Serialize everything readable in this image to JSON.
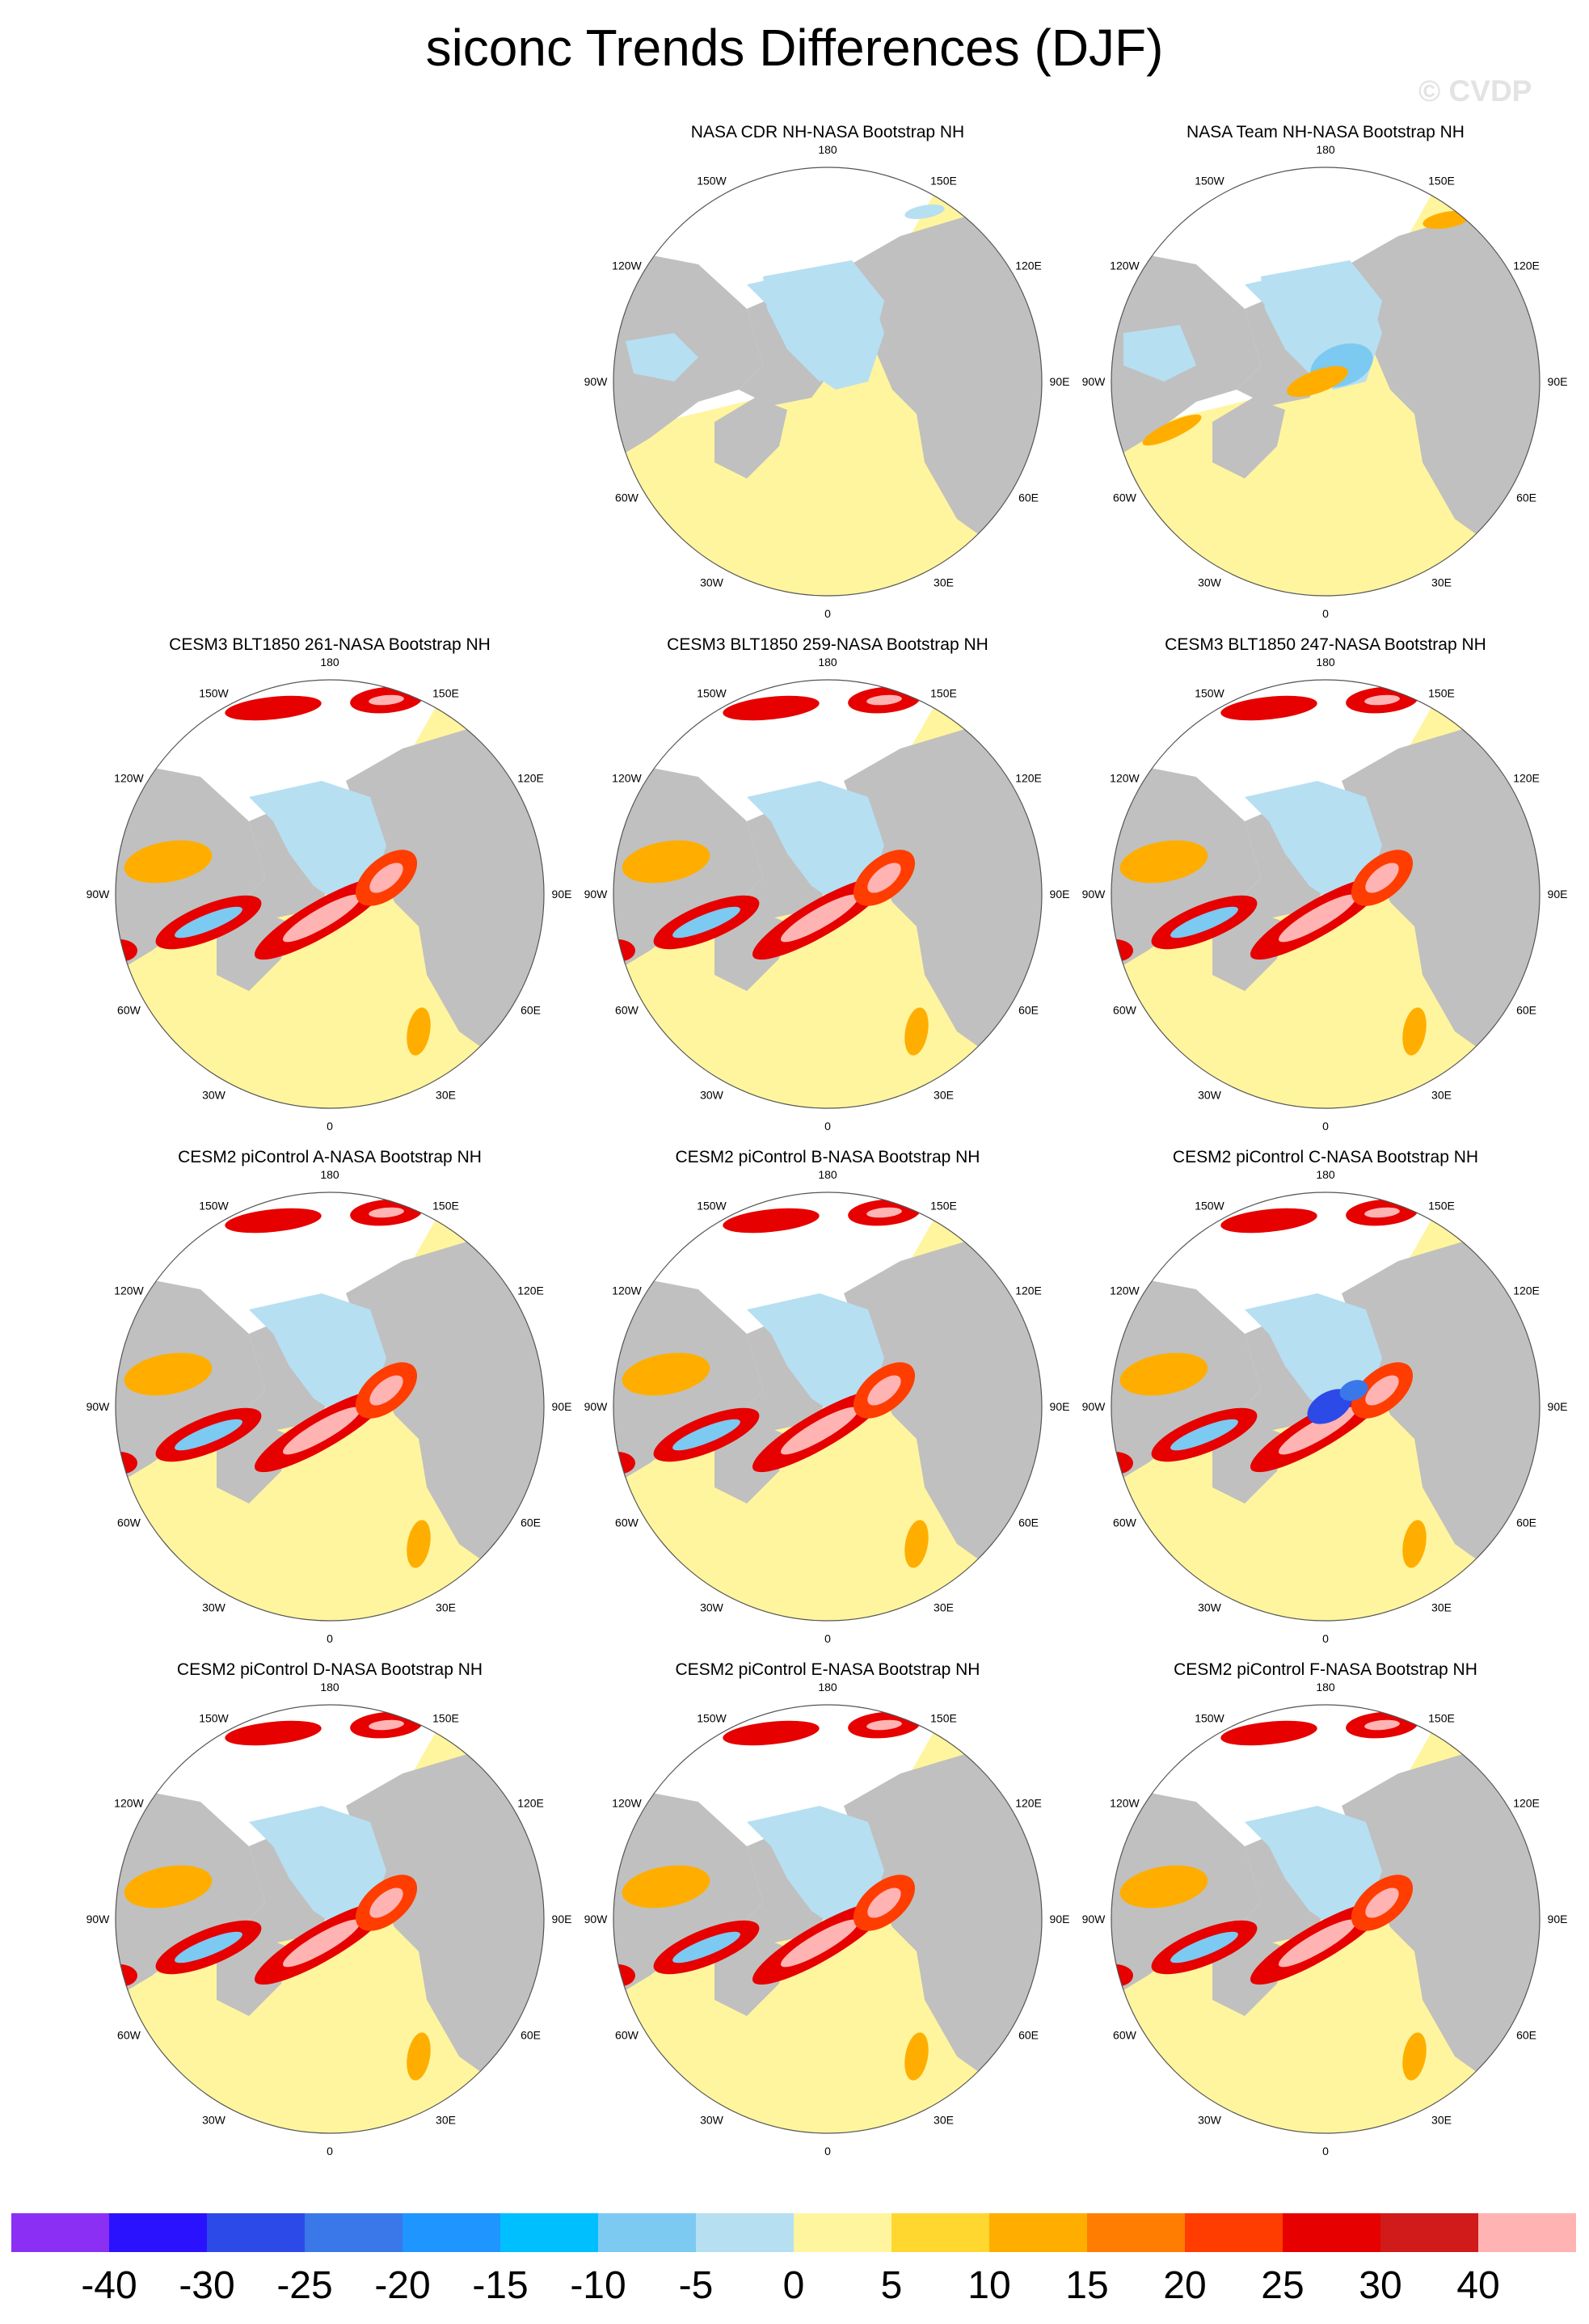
{
  "title": "siconc Trends Differences (DJF)",
  "watermark": "© CVDP",
  "longitude_labels": [
    "180",
    "150E",
    "120E",
    "90E",
    "60E",
    "30E",
    "0",
    "30W",
    "60W",
    "90W",
    "120W",
    "150W"
  ],
  "panels": [
    {
      "title": "NASA CDR NH-NASA Bootstrap NH",
      "variant": "cdr"
    },
    {
      "title": "NASA Team NH-NASA Bootstrap NH",
      "variant": "team"
    },
    {
      "title": "CESM3 BLT1850 261-NASA Bootstrap NH",
      "variant": "model"
    },
    {
      "title": "CESM3 BLT1850 259-NASA Bootstrap NH",
      "variant": "model"
    },
    {
      "title": "CESM3 BLT1850 247-NASA Bootstrap NH",
      "variant": "model"
    },
    {
      "title": "CESM2 piControl A-NASA Bootstrap NH",
      "variant": "model"
    },
    {
      "title": "CESM2 piControl B-NASA Bootstrap NH",
      "variant": "model"
    },
    {
      "title": "CESM2 piControl C-NASA Bootstrap NH",
      "variant": "modelblue"
    },
    {
      "title": "CESM2 piControl D-NASA Bootstrap NH",
      "variant": "model"
    },
    {
      "title": "CESM2 piControl E-NASA Bootstrap NH",
      "variant": "model"
    },
    {
      "title": "CESM2 piControl F-NASA Bootstrap NH",
      "variant": "model"
    }
  ],
  "colorbar": {
    "colors": [
      "#8b2ff5",
      "#2a12ff",
      "#2c4ae8",
      "#3a78ea",
      "#1f95ff",
      "#00bfff",
      "#7cc9f2",
      "#b6dff2",
      "#fff59e",
      "#ffd72e",
      "#ffae00",
      "#ff7d00",
      "#ff3d00",
      "#e60000",
      "#d11a1a",
      "#ffb3b3"
    ],
    "labels": [
      "-40",
      "-30",
      "-25",
      "-20",
      "-15",
      "-10",
      "-5",
      "0",
      "5",
      "10",
      "15",
      "20",
      "25",
      "30",
      "40"
    ]
  },
  "legend_colors": {
    "land": "#c0c0c0",
    "ocean": "#fff59e",
    "missing": "#ffffff"
  }
}
